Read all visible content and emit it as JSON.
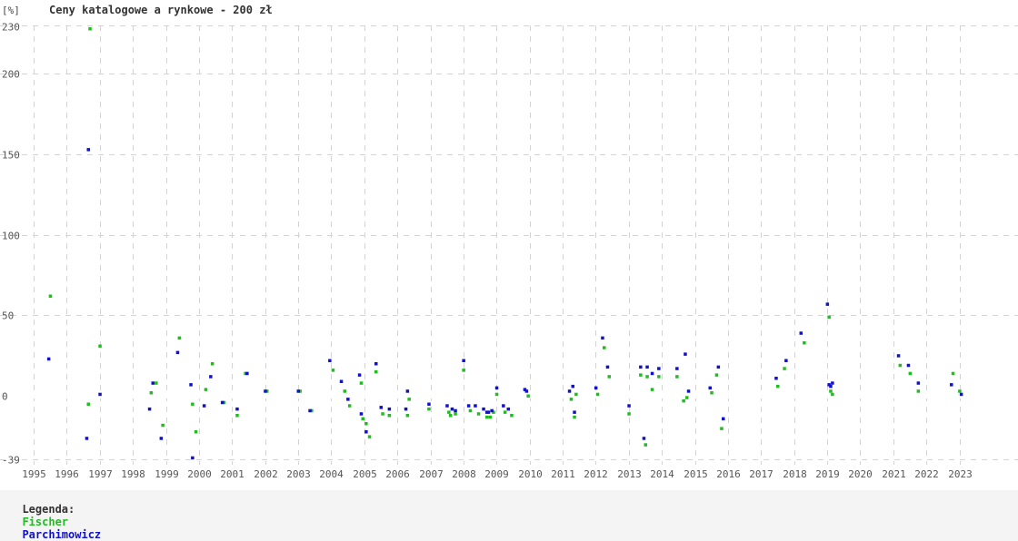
{
  "chart_data": {
    "type": "scatter",
    "title": "Ceny katalogowe a rynkowe - 200 zł",
    "ylabel": "[%]",
    "xlim": [
      1995,
      2024
    ],
    "ylim": [
      -39,
      230
    ],
    "yticks": [
      -39,
      0,
      50,
      100,
      150,
      200,
      230
    ],
    "xticks": [
      1995,
      1996,
      1997,
      1998,
      1999,
      2000,
      2001,
      2002,
      2003,
      2004,
      2005,
      2006,
      2007,
      2008,
      2009,
      2010,
      2011,
      2012,
      2013,
      2014,
      2015,
      2016,
      2017,
      2018,
      2019,
      2020,
      2021,
      2022,
      2023
    ],
    "grid": true,
    "legend_position": "bottom-left",
    "series": [
      {
        "name": "Fischer",
        "color": "#22bb22",
        "points": [
          [
            1995.5,
            62
          ],
          [
            1996.7,
            228
          ],
          [
            1996.65,
            -5
          ],
          [
            1997.0,
            31
          ],
          [
            1998.55,
            2
          ],
          [
            1998.7,
            8
          ],
          [
            1998.9,
            -18
          ],
          [
            1999.4,
            36
          ],
          [
            1999.8,
            -5
          ],
          [
            1999.9,
            -22
          ],
          [
            2000.2,
            4
          ],
          [
            2000.4,
            20
          ],
          [
            2000.75,
            -4
          ],
          [
            2001.15,
            -12
          ],
          [
            2001.4,
            14
          ],
          [
            2002.05,
            3
          ],
          [
            2003.05,
            3
          ],
          [
            2003.4,
            -9
          ],
          [
            2004.05,
            16
          ],
          [
            2004.4,
            3
          ],
          [
            2004.55,
            -6
          ],
          [
            2004.9,
            8
          ],
          [
            2004.95,
            -14
          ],
          [
            2005.05,
            -17
          ],
          [
            2005.15,
            -25
          ],
          [
            2005.35,
            15
          ],
          [
            2005.55,
            -11
          ],
          [
            2005.75,
            -12
          ],
          [
            2006.3,
            -12
          ],
          [
            2006.35,
            -2
          ],
          [
            2006.95,
            -8
          ],
          [
            2007.55,
            -10
          ],
          [
            2007.6,
            -12
          ],
          [
            2007.75,
            -11
          ],
          [
            2008.0,
            16
          ],
          [
            2008.2,
            -9
          ],
          [
            2008.45,
            -11
          ],
          [
            2008.7,
            -13
          ],
          [
            2008.8,
            -13
          ],
          [
            2008.9,
            -10
          ],
          [
            2009.0,
            1
          ],
          [
            2009.25,
            -10
          ],
          [
            2009.45,
            -12
          ],
          [
            2009.95,
            0
          ],
          [
            2011.25,
            -2
          ],
          [
            2011.35,
            -13
          ],
          [
            2011.4,
            1
          ],
          [
            2012.05,
            1
          ],
          [
            2012.25,
            30
          ],
          [
            2012.4,
            12
          ],
          [
            2013.0,
            -11
          ],
          [
            2013.35,
            13
          ],
          [
            2013.5,
            -30
          ],
          [
            2013.55,
            12
          ],
          [
            2013.7,
            4
          ],
          [
            2013.9,
            12
          ],
          [
            2014.45,
            12
          ],
          [
            2014.65,
            -3
          ],
          [
            2014.75,
            -1
          ],
          [
            2015.5,
            2
          ],
          [
            2015.65,
            13
          ],
          [
            2015.8,
            -20
          ],
          [
            2017.5,
            6
          ],
          [
            2017.7,
            17
          ],
          [
            2018.3,
            33
          ],
          [
            2019.05,
            49
          ],
          [
            2019.1,
            3
          ],
          [
            2019.15,
            1
          ],
          [
            2021.2,
            19
          ],
          [
            2021.5,
            14
          ],
          [
            2021.75,
            3
          ],
          [
            2022.8,
            14
          ],
          [
            2023.0,
            3
          ]
        ]
      },
      {
        "name": "Parchimowicz",
        "color": "#1111cc",
        "points": [
          [
            1995.45,
            23
          ],
          [
            1996.6,
            -26
          ],
          [
            1996.65,
            153
          ],
          [
            1997.0,
            1
          ],
          [
            1998.5,
            -8
          ],
          [
            1998.6,
            8
          ],
          [
            1998.85,
            -26
          ],
          [
            1999.35,
            27
          ],
          [
            1999.75,
            7
          ],
          [
            1999.8,
            -38
          ],
          [
            2000.15,
            -6
          ],
          [
            2000.35,
            12
          ],
          [
            2000.7,
            -4
          ],
          [
            2001.15,
            -8
          ],
          [
            2001.45,
            14
          ],
          [
            2002.0,
            3
          ],
          [
            2003.0,
            3
          ],
          [
            2003.35,
            -9
          ],
          [
            2003.95,
            22
          ],
          [
            2004.3,
            9
          ],
          [
            2004.5,
            -2
          ],
          [
            2004.85,
            13
          ],
          [
            2004.9,
            -11
          ],
          [
            2005.05,
            -22
          ],
          [
            2005.35,
            20
          ],
          [
            2005.5,
            -7
          ],
          [
            2005.75,
            -8
          ],
          [
            2006.25,
            -8
          ],
          [
            2006.3,
            3
          ],
          [
            2006.95,
            -5
          ],
          [
            2007.5,
            -6
          ],
          [
            2007.65,
            -8
          ],
          [
            2007.75,
            -9
          ],
          [
            2008.0,
            22
          ],
          [
            2008.15,
            -6
          ],
          [
            2008.35,
            -6
          ],
          [
            2008.6,
            -8
          ],
          [
            2008.7,
            -10
          ],
          [
            2008.75,
            -10
          ],
          [
            2008.85,
            -9
          ],
          [
            2009.0,
            5
          ],
          [
            2009.2,
            -6
          ],
          [
            2009.35,
            -8
          ],
          [
            2009.85,
            4
          ],
          [
            2009.9,
            3
          ],
          [
            2011.2,
            3
          ],
          [
            2011.3,
            6
          ],
          [
            2011.35,
            -10
          ],
          [
            2012.0,
            5
          ],
          [
            2012.2,
            36
          ],
          [
            2012.35,
            18
          ],
          [
            2013.0,
            -6
          ],
          [
            2013.35,
            18
          ],
          [
            2013.45,
            -26
          ],
          [
            2013.55,
            18
          ],
          [
            2013.7,
            14
          ],
          [
            2013.9,
            17
          ],
          [
            2014.45,
            17
          ],
          [
            2014.7,
            26
          ],
          [
            2014.8,
            3
          ],
          [
            2015.45,
            5
          ],
          [
            2015.7,
            18
          ],
          [
            2015.85,
            -14
          ],
          [
            2017.45,
            11
          ],
          [
            2017.75,
            22
          ],
          [
            2018.2,
            39
          ],
          [
            2019.0,
            57
          ],
          [
            2019.05,
            7
          ],
          [
            2019.1,
            6
          ],
          [
            2019.15,
            8
          ],
          [
            2021.15,
            25
          ],
          [
            2021.45,
            19
          ],
          [
            2021.75,
            8
          ],
          [
            2022.75,
            7
          ],
          [
            2023.05,
            1
          ]
        ]
      }
    ]
  },
  "legend": {
    "label": "Legenda:",
    "items": [
      {
        "name": "Fischer",
        "color": "#22bb22"
      },
      {
        "name": "Parchimowicz",
        "color": "#1111cc"
      }
    ]
  }
}
